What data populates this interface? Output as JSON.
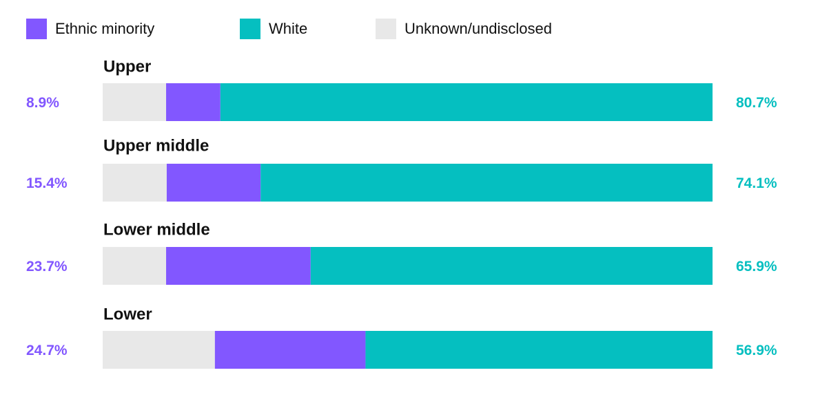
{
  "chart_data": {
    "type": "stacked-bar",
    "categories": [
      "Upper",
      "Upper middle",
      "Lower middle",
      "Lower"
    ],
    "series": [
      {
        "name": "Ethnic minority",
        "color": "#8257ff",
        "values": [
          8.9,
          15.4,
          23.7,
          24.7
        ],
        "value_labels": [
          "8.9%",
          "15.4%",
          "23.7%",
          "24.7%"
        ]
      },
      {
        "name": "White",
        "color": "#05bfc0",
        "values": [
          80.7,
          74.1,
          65.9,
          56.9
        ],
        "value_labels": [
          "80.7%",
          "74.1%",
          "65.9%",
          "56.9%"
        ]
      },
      {
        "name": "Unknown/undisclosed",
        "color": "#e8e8e8",
        "values": [
          10.4,
          10.5,
          10.4,
          18.4
        ]
      }
    ],
    "xlim": [
      0,
      100
    ]
  }
}
